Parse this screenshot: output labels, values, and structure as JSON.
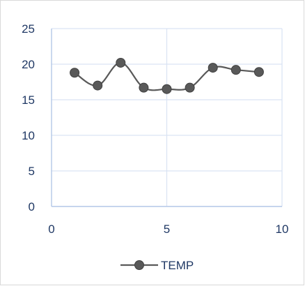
{
  "chart_data": {
    "type": "scatter",
    "title": "",
    "xlabel": "",
    "ylabel": "",
    "xlim": [
      0,
      10
    ],
    "ylim": [
      0,
      25
    ],
    "x_ticks": [
      0,
      5,
      10
    ],
    "y_ticks": [
      0,
      5,
      10,
      15,
      20,
      25
    ],
    "grid": true,
    "smooth": true,
    "legend_position": "bottom",
    "series": [
      {
        "name": "TEMP",
        "color": "#595959",
        "x": [
          1,
          2,
          3,
          4,
          5,
          6,
          7,
          8,
          9
        ],
        "y": [
          18.8,
          17.0,
          20.2,
          16.7,
          16.5,
          16.7,
          19.5,
          19.2,
          18.9
        ]
      }
    ],
    "colors": {
      "grid": "#d9e3f3",
      "axis": "#b4c7e7",
      "tick_text": "#1f3864"
    }
  }
}
